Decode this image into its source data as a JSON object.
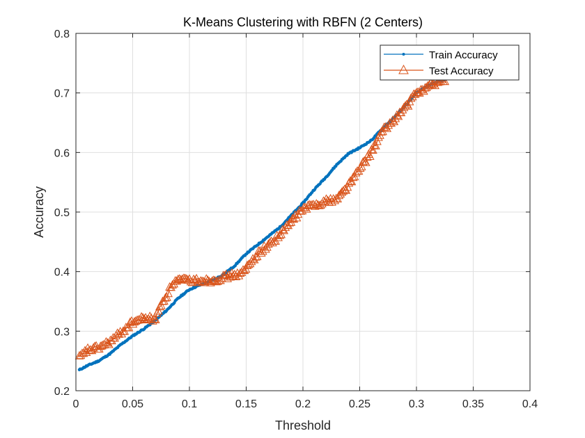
{
  "chart_data": {
    "type": "line",
    "title": "K-Means Clustering with RBFN (2 Centers)",
    "xlabel": "Threshold",
    "ylabel": "Accuracy",
    "xlim": [
      0,
      0.4
    ],
    "ylim": [
      0.2,
      0.8
    ],
    "xticks": [
      "0",
      "0.05",
      "0.1",
      "0.15",
      "0.2",
      "0.25",
      "0.3",
      "0.35",
      "0.4"
    ],
    "yticks": [
      "0.2",
      "0.3",
      "0.4",
      "0.5",
      "0.6",
      "0.7",
      "0.8"
    ],
    "grid": true,
    "legend_position": "top-right",
    "series": [
      {
        "name": "Train Accuracy",
        "color": "#0072BD",
        "marker": "dot",
        "x": [
          0.003,
          0.01,
          0.02,
          0.03,
          0.04,
          0.05,
          0.06,
          0.07,
          0.08,
          0.09,
          0.1,
          0.11,
          0.12,
          0.13,
          0.14,
          0.15,
          0.16,
          0.17,
          0.18,
          0.19,
          0.2,
          0.21,
          0.22,
          0.23,
          0.24,
          0.25,
          0.26,
          0.27,
          0.28,
          0.29,
          0.3,
          0.31,
          0.32,
          0.325
        ],
        "y": [
          0.235,
          0.242,
          0.25,
          0.262,
          0.278,
          0.292,
          0.304,
          0.318,
          0.335,
          0.355,
          0.37,
          0.378,
          0.385,
          0.395,
          0.41,
          0.43,
          0.445,
          0.46,
          0.475,
          0.495,
          0.515,
          0.538,
          0.558,
          0.58,
          0.598,
          0.608,
          0.62,
          0.64,
          0.658,
          0.678,
          0.7,
          0.712,
          0.72,
          0.722
        ]
      },
      {
        "name": "Test Accuracy",
        "color": "#D95319",
        "marker": "triangle",
        "x": [
          0.003,
          0.01,
          0.02,
          0.03,
          0.04,
          0.05,
          0.06,
          0.07,
          0.075,
          0.08,
          0.085,
          0.09,
          0.1,
          0.11,
          0.12,
          0.13,
          0.14,
          0.145,
          0.15,
          0.16,
          0.17,
          0.18,
          0.19,
          0.2,
          0.21,
          0.22,
          0.23,
          0.24,
          0.25,
          0.26,
          0.27,
          0.28,
          0.29,
          0.3,
          0.31,
          0.32,
          0.325
        ],
        "y": [
          0.255,
          0.268,
          0.272,
          0.282,
          0.298,
          0.315,
          0.322,
          0.32,
          0.345,
          0.36,
          0.38,
          0.385,
          0.385,
          0.385,
          0.385,
          0.39,
          0.395,
          0.395,
          0.405,
          0.43,
          0.445,
          0.462,
          0.485,
          0.505,
          0.512,
          0.518,
          0.522,
          0.545,
          0.572,
          0.6,
          0.635,
          0.655,
          0.675,
          0.7,
          0.71,
          0.72,
          0.722
        ]
      }
    ]
  }
}
